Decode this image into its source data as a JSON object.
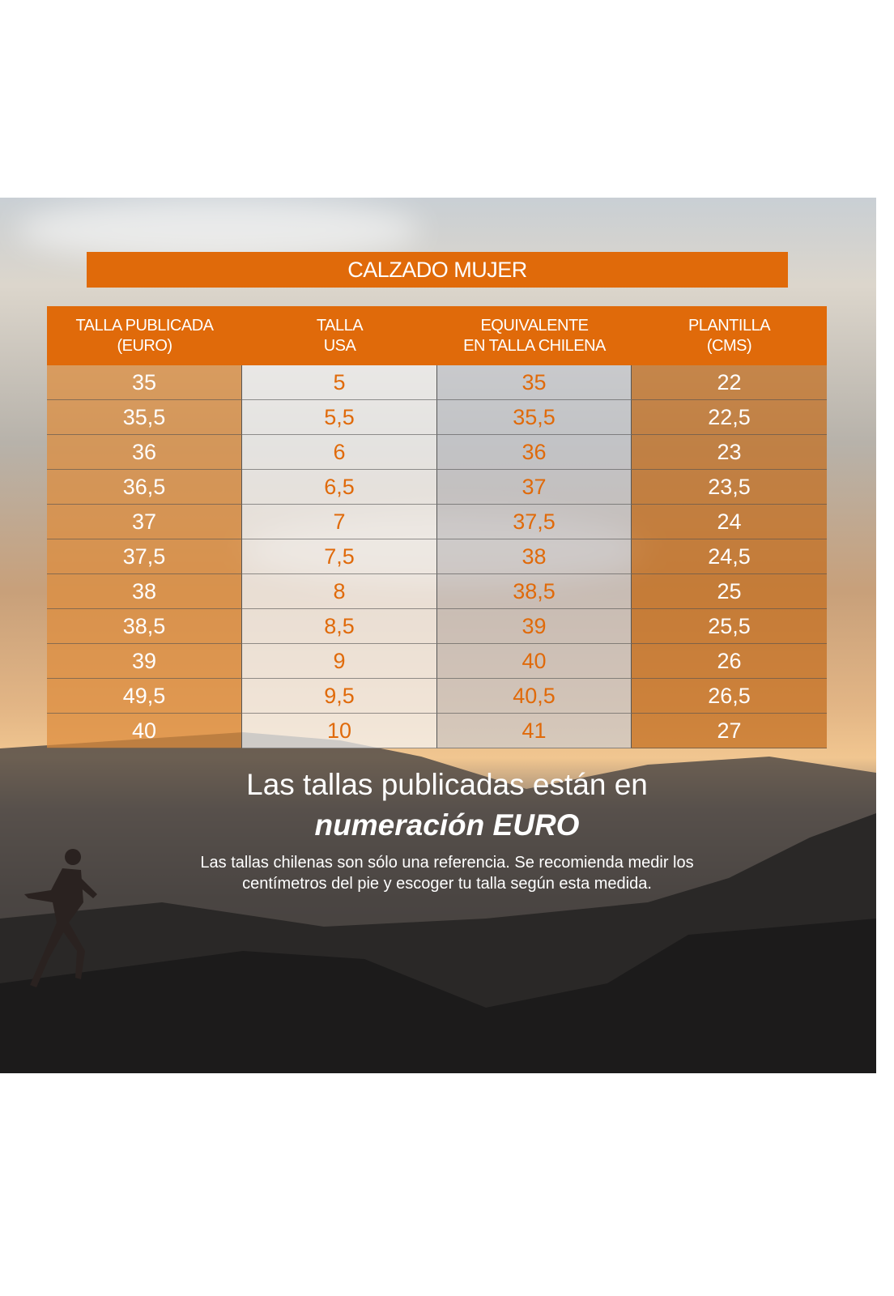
{
  "title": "CALZADO MUJER",
  "headers": [
    [
      "TALLA PUBLICADA",
      "(EURO)"
    ],
    [
      "TALLA",
      "USA"
    ],
    [
      "EQUIVALENTE",
      "EN TALLA CHILENA"
    ],
    [
      "PLANTILLA",
      "(CMS)"
    ]
  ],
  "rows": [
    [
      "35",
      "5",
      "35",
      "22"
    ],
    [
      "35,5",
      "5,5",
      "35,5",
      "22,5"
    ],
    [
      "36",
      "6",
      "36",
      "23"
    ],
    [
      "36,5",
      "6,5",
      "37",
      "23,5"
    ],
    [
      "37",
      "7",
      "37,5",
      "24"
    ],
    [
      "37,5",
      "7,5",
      "38",
      "24,5"
    ],
    [
      "38",
      "8",
      "38,5",
      "25"
    ],
    [
      "38,5",
      "8,5",
      "39",
      "25,5"
    ],
    [
      "39",
      "9",
      "40",
      "26"
    ],
    [
      "49,5",
      "9,5",
      "40,5",
      "26,5"
    ],
    [
      "40",
      "10",
      "41",
      "27"
    ]
  ],
  "headline_line1": "Las tallas publicadas están en",
  "headline_line2": "numeración EURO",
  "note_line1": "Las tallas chilenas son sólo una referencia. Se recomienda medir los",
  "note_line2": "centímetros del pie y escoger tu talla según esta medida.",
  "colors": {
    "accent": "#e06a0a"
  }
}
